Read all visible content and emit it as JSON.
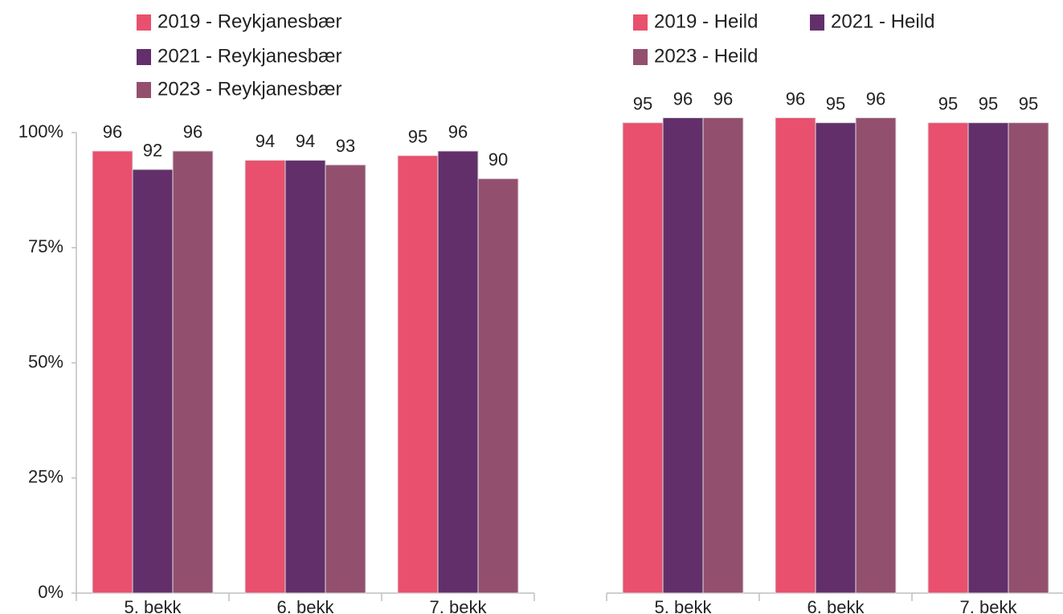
{
  "chart_data": [
    {
      "type": "bar",
      "categories": [
        "5. bekk",
        "6. bekk",
        "7. bekk"
      ],
      "series": [
        {
          "name": "2019 - Reykjanesbær",
          "color": "#e8506e",
          "values": [
            96,
            94,
            95
          ]
        },
        {
          "name": "2021 - Reykjanesbær",
          "color": "#622f6b",
          "values": [
            92,
            94,
            96
          ]
        },
        {
          "name": "2023 - Reykjanesbær",
          "color": "#93506e",
          "values": [
            96,
            93,
            90
          ]
        }
      ],
      "ylim": [
        0,
        100
      ],
      "yticks": [
        {
          "value": 0,
          "label": "0%"
        },
        {
          "value": 25,
          "label": "25%"
        },
        {
          "value": 50,
          "label": "50%"
        },
        {
          "value": 75,
          "label": "75%"
        },
        {
          "value": 100,
          "label": "100%"
        }
      ]
    },
    {
      "type": "bar",
      "categories": [
        "5. bekk",
        "6. bekk",
        "7. bekk"
      ],
      "series": [
        {
          "name": "2019 - Heild",
          "color": "#e8506e",
          "values": [
            95,
            96,
            95
          ]
        },
        {
          "name": "2021 - Heild",
          "color": "#622f6b",
          "values": [
            96,
            95,
            95
          ]
        },
        {
          "name": "2023 - Heild",
          "color": "#93506e",
          "values": [
            96,
            96,
            95
          ]
        }
      ],
      "ylim": [
        0,
        93
      ]
    }
  ]
}
